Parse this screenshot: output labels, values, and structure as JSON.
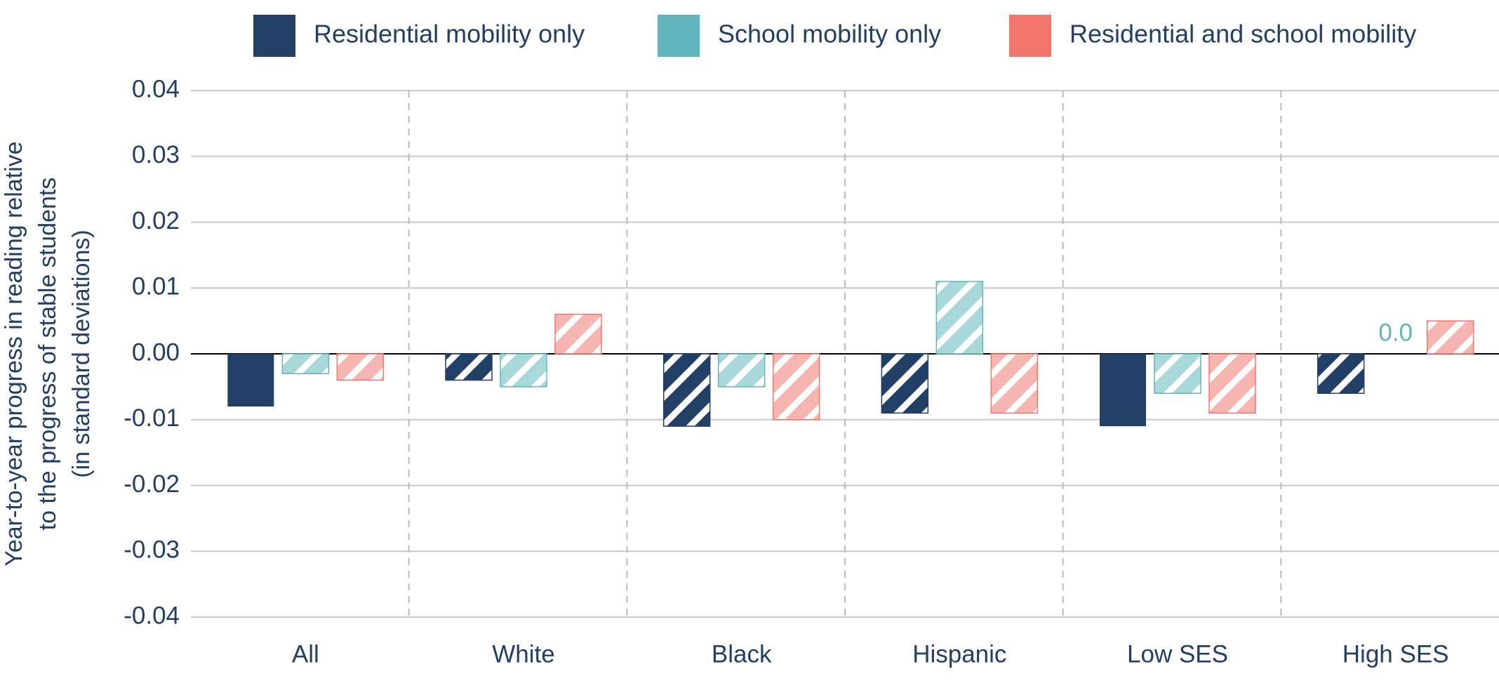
{
  "chart_data": {
    "type": "bar",
    "ylabel": [
      "Year-to-year progress in reading relative",
      "to the progress of stable students",
      "(in standard deviations)"
    ],
    "categories": [
      "All",
      "White",
      "Black",
      "Hispanic",
      "Low SES",
      "High SES"
    ],
    "series": [
      {
        "name": "Residential mobility only",
        "color": "#223f66",
        "hatch_color": "#223f66",
        "values": [
          -0.008,
          -0.004,
          -0.011,
          -0.009,
          -0.011,
          -0.006
        ],
        "patterns": [
          "solid",
          "hatched",
          "hatched",
          "hatched",
          "solid",
          "hatched"
        ]
      },
      {
        "name": "School mobility only",
        "color": "#62b6bb",
        "hatch_color": "#a9d8da",
        "values": [
          -0.003,
          -0.005,
          -0.005,
          0.011,
          -0.006,
          0
        ],
        "value_labels": [
          null,
          null,
          null,
          null,
          null,
          "0.0"
        ],
        "patterns": [
          "hatched",
          "hatched",
          "hatched",
          "hatched",
          "hatched",
          "none"
        ]
      },
      {
        "name": "Residential and school mobility",
        "color": "#f2766b",
        "hatch_color": "#f6b5b0",
        "values": [
          -0.004,
          0.006,
          -0.01,
          -0.009,
          -0.009,
          0.005
        ],
        "patterns": [
          "hatched",
          "hatched",
          "hatched",
          "hatched",
          "hatched",
          "hatched"
        ]
      }
    ],
    "ylim": [
      -0.04,
      0.04
    ],
    "yticks": [
      -0.04,
      -0.03,
      -0.02,
      -0.01,
      {
        "value": 0,
        "label": "0.00"
      },
      0.01,
      0.02,
      0.03,
      0.04
    ],
    "grid": true,
    "legend": "top"
  }
}
